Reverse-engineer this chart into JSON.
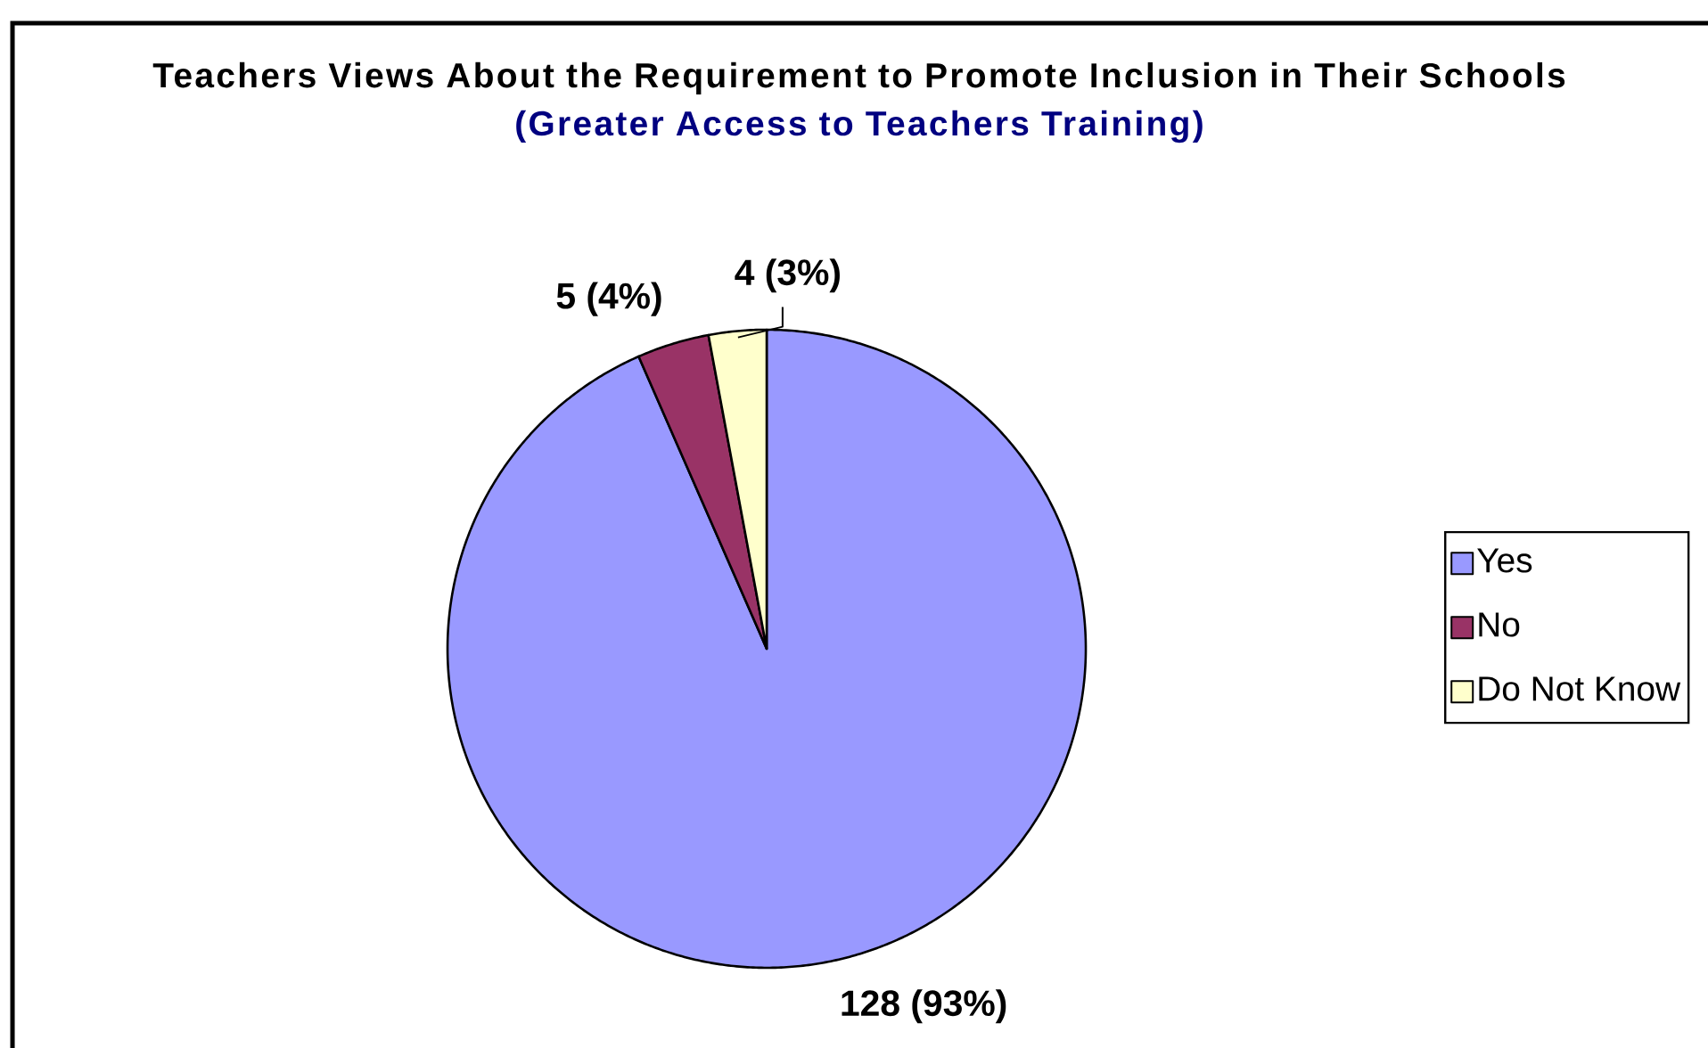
{
  "chart_data": {
    "type": "pie",
    "title": "Teachers Views About the Requirement to Promote Inclusion in Their Schools",
    "subtitle": "(Greater Access to Teachers Training)",
    "categories": [
      "Yes",
      "No",
      "Do Not Know"
    ],
    "values": [
      128,
      5,
      4
    ],
    "colors": [
      "#9999ff",
      "#993366",
      "#ffffcc"
    ],
    "value_labels": [
      "128 (93%)",
      "5 (4%)",
      "4 (3%)"
    ],
    "legend": "right"
  }
}
